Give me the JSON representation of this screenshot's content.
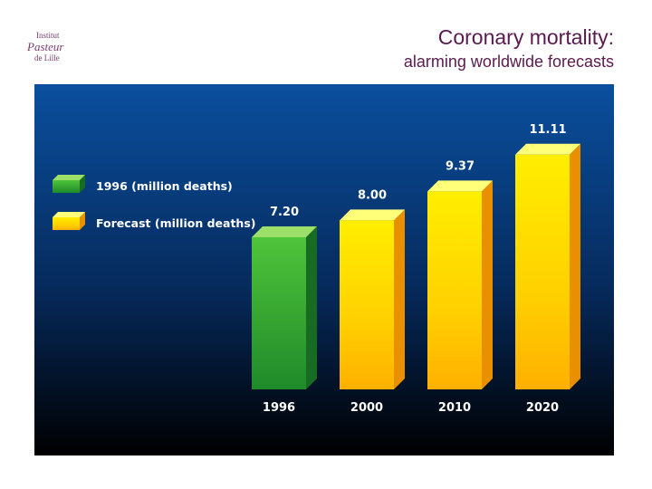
{
  "logo": {
    "line1": "Institut",
    "line2": "Pasteur",
    "line3": "de Lille"
  },
  "header": {
    "title": "Coronary mortality:",
    "subtitle": "alarming worldwide forecasts"
  },
  "chart_data": {
    "type": "bar",
    "title": "",
    "xlabel": "",
    "ylabel": "",
    "categories": [
      "1996",
      "2000",
      "2010",
      "2020"
    ],
    "values": [
      7.2,
      8.0,
      9.37,
      11.11
    ],
    "value_labels": [
      "7.20",
      "8.00",
      "9.37",
      "11.11"
    ],
    "series_type": [
      "actual",
      "forecast",
      "forecast",
      "forecast"
    ],
    "legend": [
      {
        "key": "actual",
        "label": "1996 (million deaths)",
        "color": "#2e9a2e"
      },
      {
        "key": "forecast",
        "label": "Forecast (million deaths)",
        "color": "#f5c400"
      }
    ],
    "legend_position": "top-left",
    "grid": false,
    "ylim": [
      0,
      12
    ],
    "background": [
      "#0a4f9e",
      "#000000"
    ]
  }
}
